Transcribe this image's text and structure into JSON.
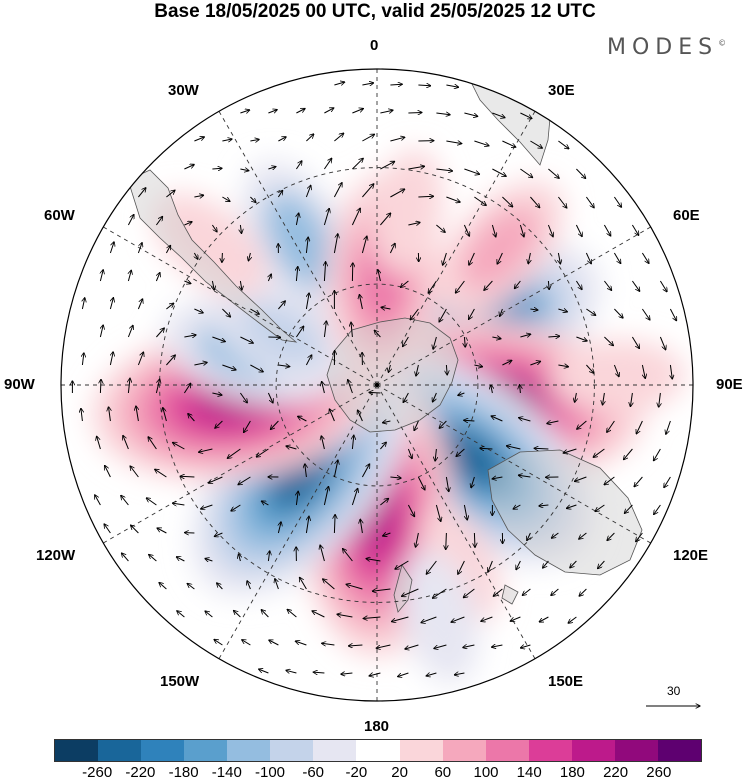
{
  "title": "Base 18/05/2025 00 UTC, valid 25/05/2025 12 UTC",
  "brand": {
    "name": "MODES",
    "mark": "©"
  },
  "longitude_labels": {
    "lon_0": "0",
    "lon_30e": "30E",
    "lon_60e": "60E",
    "lon_90e": "90E",
    "lon_120e": "120E",
    "lon_150e": "150E",
    "lon_180": "180",
    "lon_150w": "150W",
    "lon_120w": "120W",
    "lon_90w": "90W",
    "lon_60w": "60W",
    "lon_30w": "30W"
  },
  "reference_vector": {
    "label": "30"
  },
  "colorbar": {
    "colors": [
      "#0c3d63",
      "#19669a",
      "#2f82bb",
      "#5a9fcd",
      "#94bde0",
      "#c4d3ea",
      "#e6e6f2",
      "#ffffff",
      "#fad6da",
      "#f5a8bd",
      "#ec77a9",
      "#dc3d98",
      "#bd1a8b",
      "#91097c",
      "#5e0070"
    ],
    "tick_labels": [
      "-260",
      "-220",
      "-180",
      "-140",
      "-100",
      "-60",
      "-20",
      "20",
      "60",
      "100",
      "140",
      "180",
      "220",
      "260"
    ]
  },
  "anomaly_features": [
    {
      "lon": 62,
      "lat": -56,
      "value": -200
    },
    {
      "lon": 97,
      "lat": -54,
      "value": 230
    },
    {
      "lon": 128,
      "lat": -55,
      "value": -220
    },
    {
      "lon": 180,
      "lat": -52,
      "value": 220
    },
    {
      "lon": -140,
      "lat": -55,
      "value": -220
    },
    {
      "lon": -97,
      "lat": -48,
      "value": 220
    },
    {
      "lon": -75,
      "lat": -52,
      "value": -110
    },
    {
      "lon": -62,
      "lat": -58,
      "value": -80
    },
    {
      "lon": -28,
      "lat": -43,
      "value": -100
    },
    {
      "lon": -50,
      "lat": -30,
      "value": 60
    },
    {
      "lon": 3,
      "lat": -58,
      "value": 140
    },
    {
      "lon": 10,
      "lat": -40,
      "value": 50
    },
    {
      "lon": 42,
      "lat": -38,
      "value": 90
    },
    {
      "lon": 88,
      "lat": -25,
      "value": 60
    },
    {
      "lon": 155,
      "lat": -35,
      "value": 50
    },
    {
      "lon": 165,
      "lat": -25,
      "value": -60
    }
  ]
}
